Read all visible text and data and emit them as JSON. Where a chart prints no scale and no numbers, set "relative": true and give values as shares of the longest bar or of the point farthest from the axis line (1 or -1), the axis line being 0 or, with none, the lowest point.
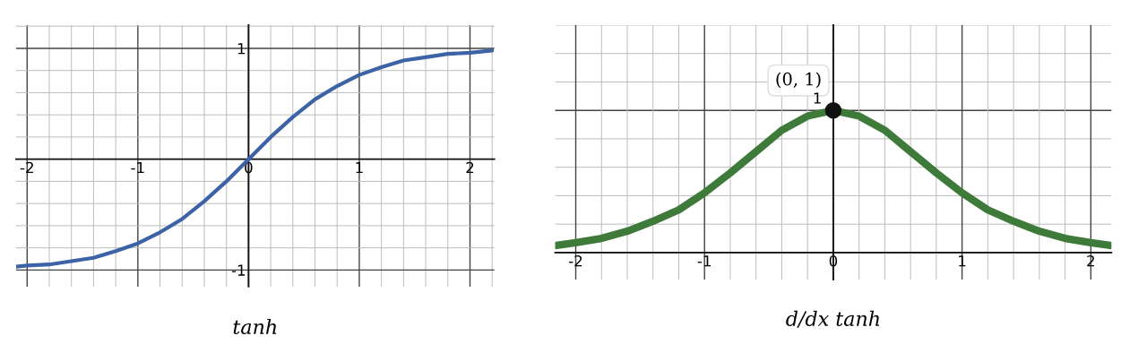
{
  "chart_data": [
    {
      "type": "line",
      "xlabel": "tanh",
      "xlim": [
        -2.1,
        2.22
      ],
      "ylim": [
        -1.15,
        1.21
      ],
      "xticks": [
        -2,
        {
          "value": -1.8,
          "label": null
        },
        {
          "value": -1.6,
          "label": null
        },
        {
          "value": -1.4,
          "label": null
        },
        {
          "value": -1.2,
          "label": null
        },
        -1,
        {
          "value": -0.8,
          "label": null
        },
        {
          "value": -0.6,
          "label": null
        },
        {
          "value": -0.4,
          "label": null
        },
        {
          "value": -0.2,
          "label": null
        },
        0,
        {
          "value": 0.2,
          "label": null
        },
        {
          "value": 0.4,
          "label": null
        },
        {
          "value": 0.6,
          "label": null
        },
        {
          "value": 0.8,
          "label": null
        },
        1,
        {
          "value": 1.2,
          "label": null
        },
        {
          "value": 1.4,
          "label": null
        },
        {
          "value": 1.6,
          "label": null
        },
        {
          "value": 1.8,
          "label": null
        },
        2,
        {
          "value": 2.2,
          "label": null
        }
      ],
      "yticks": [
        -1,
        {
          "value": -0.8,
          "label": null
        },
        {
          "value": -0.6,
          "label": null
        },
        {
          "value": -0.4,
          "label": null
        },
        {
          "value": -0.2,
          "label": null
        },
        {
          "value": 0,
          "label": null
        },
        {
          "value": 0.2,
          "label": null
        },
        {
          "value": 0.4,
          "label": null
        },
        {
          "value": 0.6,
          "label": null
        },
        {
          "value": 0.8,
          "label": null
        },
        1,
        {
          "value": 1.2,
          "label": null
        }
      ],
      "grid": true,
      "line_style": "solid",
      "marker": "none",
      "x": [
        -2.1,
        -2,
        -1.8,
        -1.6,
        -1.4,
        -1.2,
        -1,
        -0.8,
        -0.6,
        -0.4,
        -0.2,
        0,
        0.2,
        0.4,
        0.6,
        0.8,
        1,
        1.2,
        1.4,
        1.6,
        1.8,
        2,
        2.2
      ],
      "series": [
        {
          "color": "#3b63a6",
          "values": [
            -0.97,
            -0.96,
            -0.95,
            -0.92,
            -0.89,
            -0.83,
            -0.76,
            -0.66,
            -0.54,
            -0.38,
            -0.2,
            0,
            0.2,
            0.38,
            0.54,
            0.66,
            0.76,
            0.83,
            0.89,
            0.92,
            0.95,
            0.96,
            0.98
          ]
        }
      ]
    },
    {
      "type": "line",
      "xlabel": "d/dx tanh",
      "xlim": [
        -2.16,
        2.16
      ],
      "relative": true,
      "xticks": [
        -2,
        {
          "value": -1.8,
          "label": null
        },
        {
          "value": -1.6,
          "label": null
        },
        {
          "value": -1.4,
          "label": null
        },
        {
          "value": -1.2,
          "label": null
        },
        -1,
        {
          "value": -0.8,
          "label": null
        },
        {
          "value": -0.6,
          "label": null
        },
        {
          "value": -0.4,
          "label": null
        },
        {
          "value": -0.2,
          "label": null
        },
        0,
        {
          "value": 0.2,
          "label": null
        },
        {
          "value": 0.4,
          "label": null
        },
        {
          "value": 0.6,
          "label": null
        },
        {
          "value": 0.8,
          "label": null
        },
        1,
        {
          "value": 1.2,
          "label": null
        },
        {
          "value": 1.4,
          "label": null
        },
        {
          "value": 1.6,
          "label": null
        },
        {
          "value": 1.8,
          "label": null
        },
        2
      ],
      "grid": true,
      "line_style": "solid",
      "annotations": [
        {
          "text": "(0, 1)",
          "x": 0,
          "y": 1
        },
        {
          "text": "1",
          "x": 0,
          "y": 1
        }
      ],
      "x": [
        -2.15,
        -2,
        -1.8,
        -1.6,
        -1.4,
        -1.2,
        -1,
        -0.8,
        -0.6,
        -0.4,
        -0.2,
        0,
        0.2,
        0.4,
        0.6,
        0.8,
        1,
        1.2,
        1.4,
        1.6,
        1.8,
        2,
        2.15
      ],
      "series": [
        {
          "color": "#3e7b3a",
          "values": [
            0.05,
            0.07,
            0.1,
            0.15,
            0.22,
            0.3,
            0.42,
            0.56,
            0.71,
            0.86,
            0.96,
            1,
            0.96,
            0.86,
            0.71,
            0.56,
            0.42,
            0.3,
            0.22,
            0.15,
            0.1,
            0.07,
            0.05
          ]
        },
        {
          "type": "scatter",
          "color": "#111111",
          "marker": "circle",
          "x": [
            0
          ],
          "values": [
            1
          ]
        }
      ]
    }
  ]
}
